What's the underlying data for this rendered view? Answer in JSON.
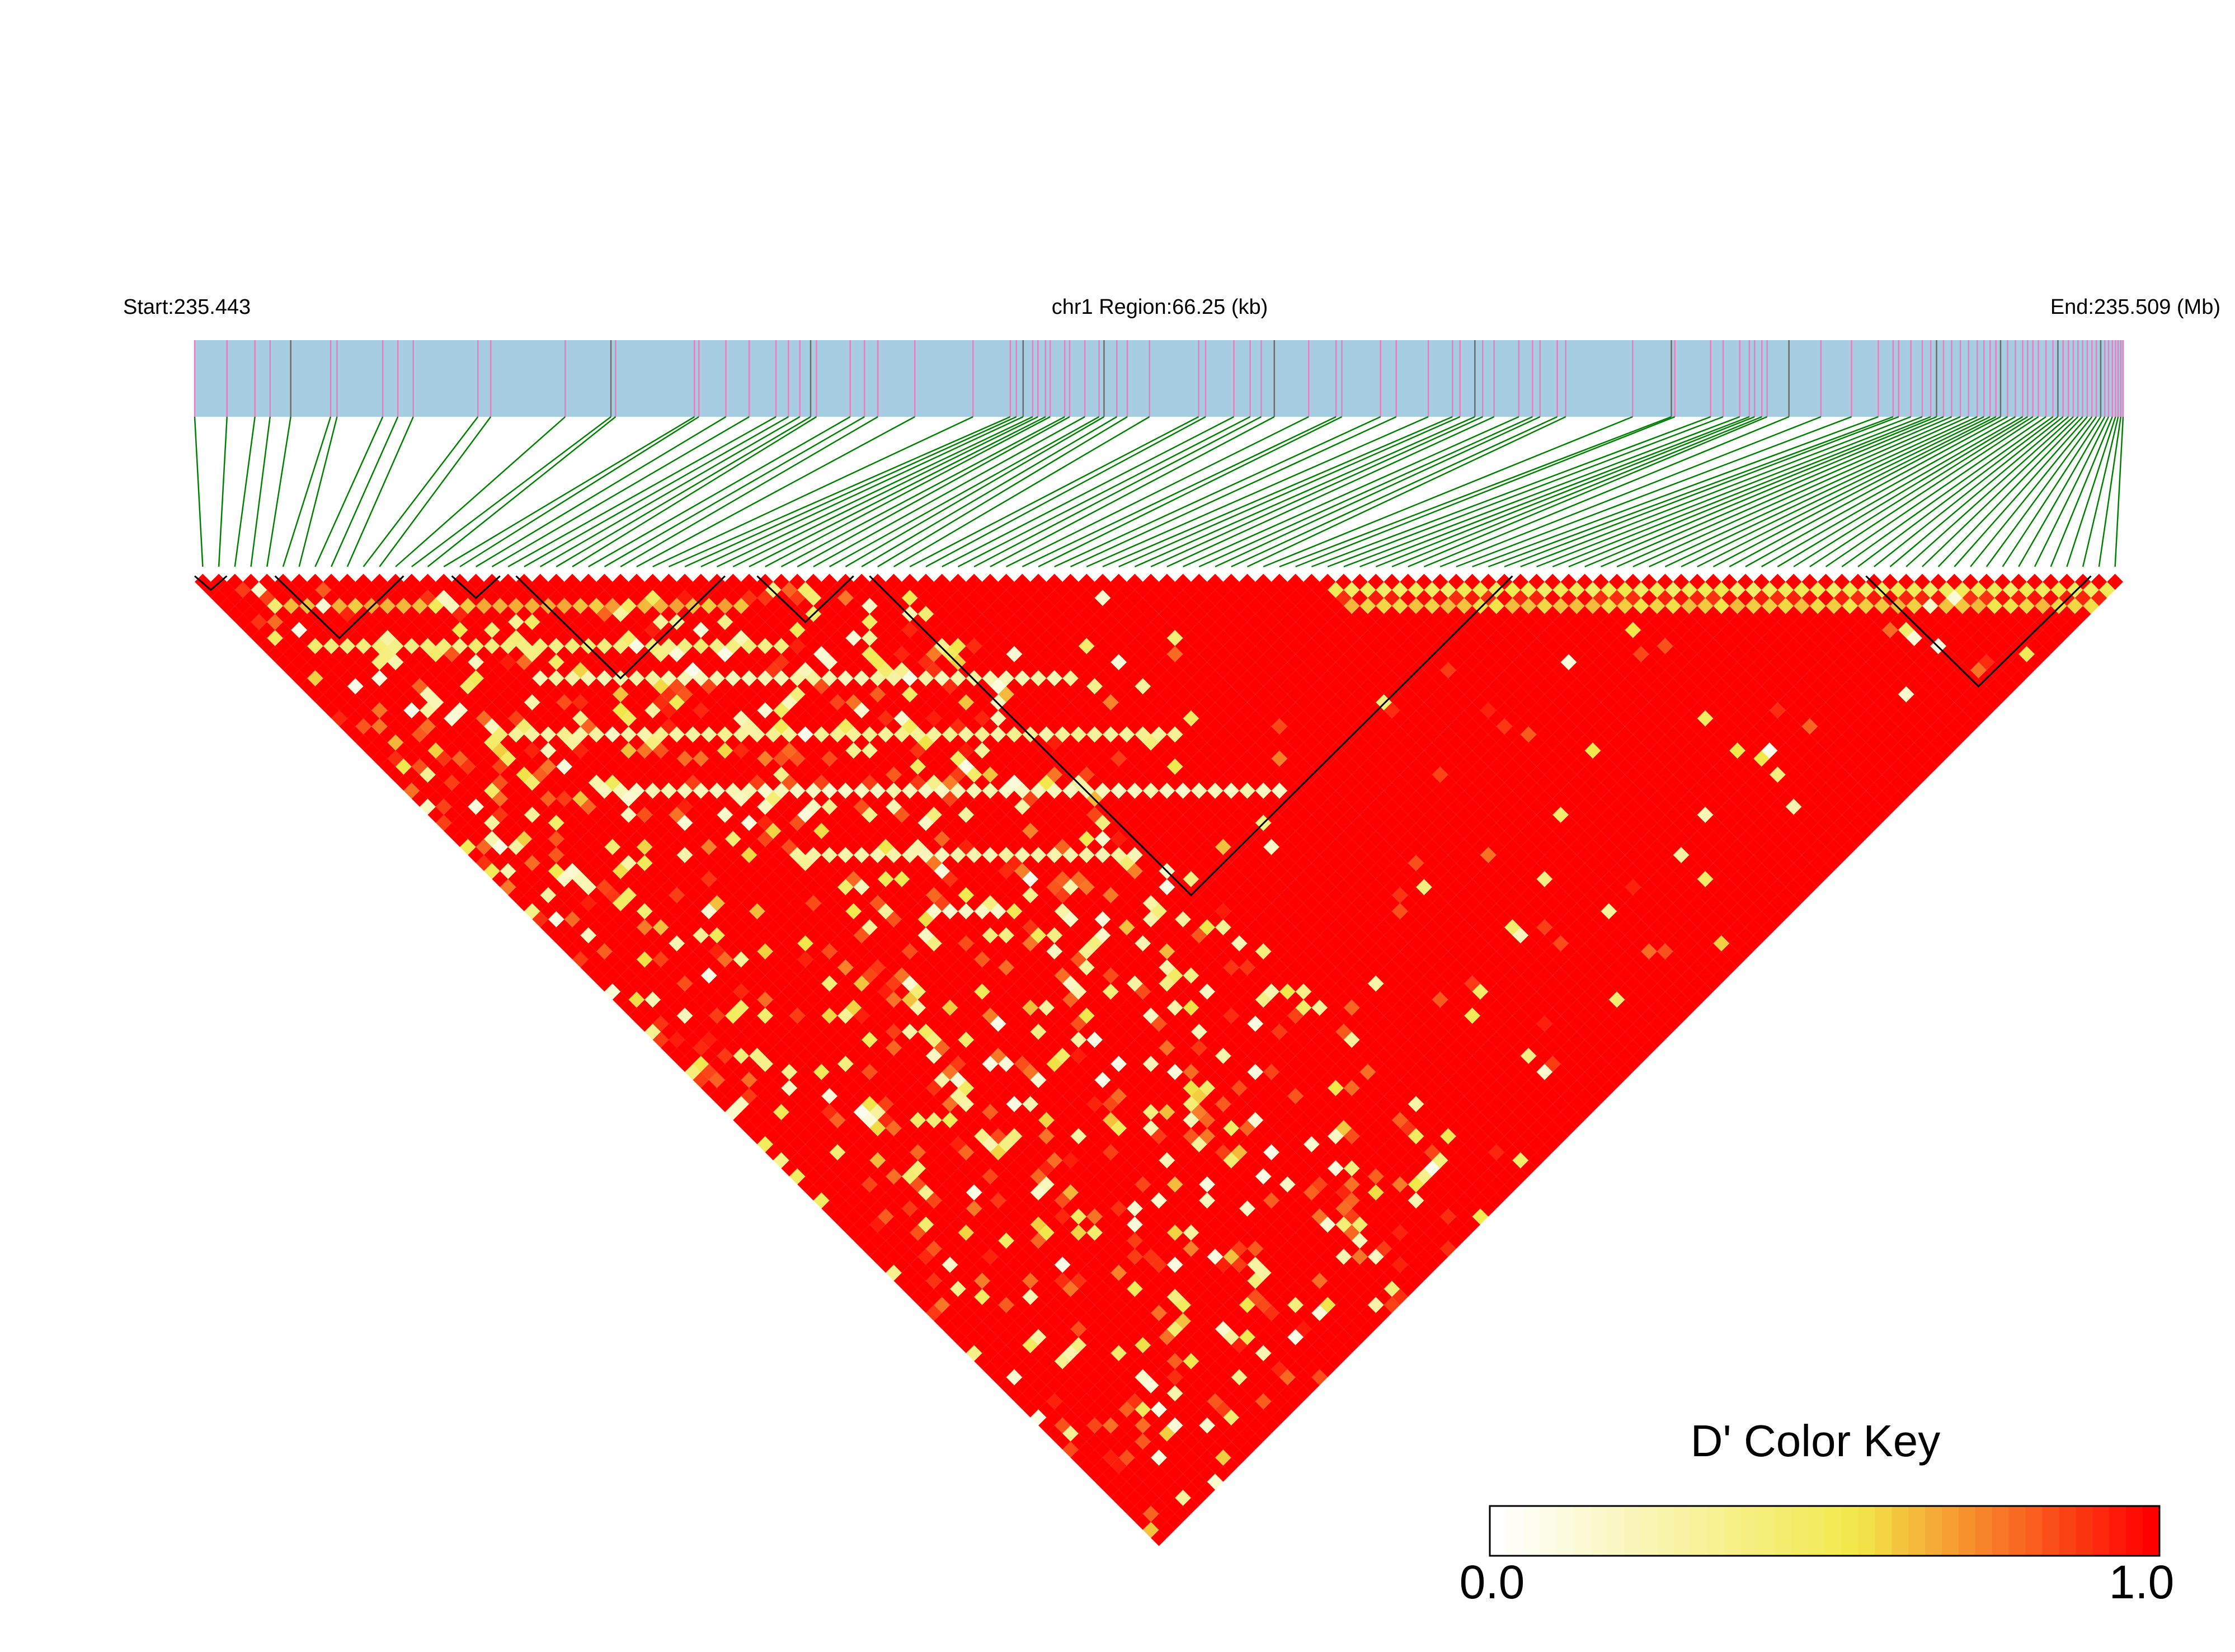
{
  "chart_data": {
    "type": "heatmap",
    "subtype": "linkage-disequilibrium-triangle",
    "chromosome": "chr1",
    "start_label": "Start:235.443",
    "region_label": "chr1 Region:66.25 (kb)",
    "end_label": "End:235.509 (Mb)",
    "start_mb": 235.443,
    "end_mb": 235.509,
    "region_kb": 66.25,
    "measure": "D'",
    "snp_count": 120,
    "snp_positions_kb": [
      0.0,
      1.11,
      2.07,
      2.59,
      3.3,
      4.67,
      4.89,
      6.46,
      6.98,
      7.51,
      9.73,
      10.17,
      12.73,
      14.3,
      14.46,
      17.17,
      17.32,
      18.25,
      19.05,
      19.97,
      20.4,
      20.79,
      21.16,
      21.36,
      22.52,
      23.01,
      23.47,
      24.74,
      26.74,
      28.02,
      28.23,
      28.46,
      28.79,
      28.97,
      29.23,
      29.39,
      29.89,
      30.06,
      30.58,
      31.07,
      31.24,
      31.68,
      32.04,
      32.8,
      34.49,
      34.73,
      35.7,
      36.26,
      36.64,
      37.09,
      38.27,
      39.21,
      39.41,
      40.74,
      41.28,
      42.38,
      43.21,
      43.47,
      43.98,
      44.25,
      44.64,
      45.49,
      45.96,
      46.22,
      46.81,
      47.1,
      49.4,
      50.73,
      50.85,
      52.08,
      52.51,
      53.08,
      53.41,
      53.59,
      53.84,
      54.02,
      54.77,
      55.87,
      56.92,
      57.84,
      58.35,
      58.54,
      58.96,
      59.35,
      59.64,
      59.84,
      60.08,
      60.36,
      60.66,
      60.94,
      61.24,
      61.47,
      61.68,
      61.88,
      62.04,
      62.28,
      62.55,
      62.8,
      62.97,
      63.15,
      63.34,
      63.6,
      63.84,
      64.01,
      64.19,
      64.37,
      64.54,
      64.7,
      64.86,
      65.02,
      65.18,
      65.33,
      65.48,
      65.62,
      65.75,
      65.88,
      65.99,
      66.08,
      66.17,
      66.25
    ],
    "haplotype_blocks": [
      {
        "first_snp": 0,
        "last_snp": 1
      },
      {
        "first_snp": 5,
        "last_snp": 12
      },
      {
        "first_snp": 16,
        "last_snp": 18
      },
      {
        "first_snp": 20,
        "last_snp": 32
      },
      {
        "first_snp": 35,
        "last_snp": 40
      },
      {
        "first_snp": 42,
        "last_snp": 81
      },
      {
        "first_snp": 104,
        "last_snp": 117
      }
    ],
    "dominant_value": 1.0,
    "low_ld_bands": [
      {
        "distance": 1,
        "value": 0.45,
        "range": [
          70,
          119
        ]
      },
      {
        "distance": 2,
        "value": 0.9,
        "range": [
          70,
          119
        ]
      },
      {
        "distance": 3,
        "value": 0.55,
        "range": [
          70,
          119
        ]
      },
      {
        "distance": 3,
        "value": 0.6,
        "range": [
          3,
          35
        ]
      },
      {
        "distance": 8,
        "value": 0.35,
        "range": [
          3,
          40
        ]
      },
      {
        "distance": 12,
        "value": 0.2,
        "range": [
          15,
          60
        ]
      },
      {
        "distance": 19,
        "value": 0.25,
        "range": [
          10,
          70
        ]
      },
      {
        "distance": 26,
        "value": 0.15,
        "range": [
          12,
          80
        ]
      },
      {
        "distance": 34,
        "value": 0.2,
        "range": [
          20,
          75
        ]
      },
      {
        "distance": 41,
        "value": 0.1,
        "range": [
          25,
          70
        ]
      },
      {
        "distance": 50,
        "value": 0.15,
        "range": [
          15,
          60
        ]
      },
      {
        "distance": 58,
        "value": 0.5,
        "range": [
          22,
          70
        ]
      }
    ],
    "color_key": {
      "title": "D' Color Key",
      "min_label": "0.0",
      "max_label": "1.0",
      "min": 0.0,
      "max": 1.0,
      "stops": [
        "#ffffff",
        "#f2e84a",
        "#ff0000"
      ]
    },
    "colors": {
      "track_fill": "#a6cde1",
      "snp_tick": "#e67fbf",
      "connector": "#008000",
      "block_outline": "#000000"
    }
  }
}
